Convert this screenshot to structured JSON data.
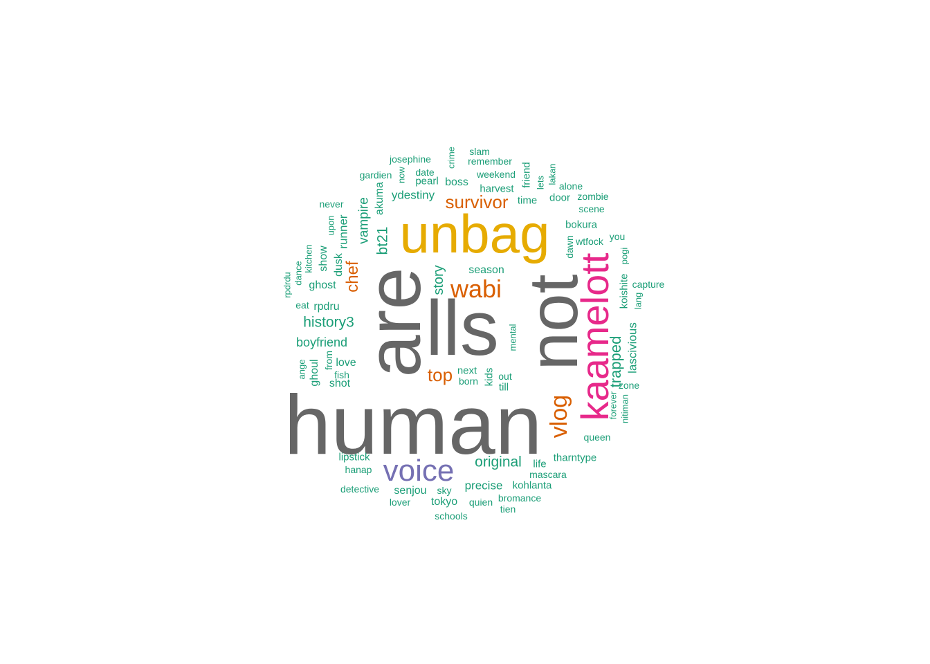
{
  "colors": {
    "gray": "#666666",
    "gold": "#E6AB02",
    "pink": "#E7298A",
    "orange": "#D95F02",
    "purple": "#7570B3",
    "teal": "#1B9E77"
  },
  "words": [
    {
      "text": "human",
      "color": "gray"
    },
    {
      "text": "lls",
      "color": "gray"
    },
    {
      "text": "are",
      "color": "gray"
    },
    {
      "text": "not",
      "color": "gray"
    },
    {
      "text": "unbag",
      "color": "gold"
    },
    {
      "text": "kaamelott",
      "color": "pink"
    },
    {
      "text": "voice",
      "color": "purple"
    },
    {
      "text": "wabi",
      "color": "orange"
    },
    {
      "text": "vlog",
      "color": "orange"
    },
    {
      "text": "survivor",
      "color": "orange"
    },
    {
      "text": "chef",
      "color": "orange"
    },
    {
      "text": "top",
      "color": "orange"
    },
    {
      "text": "trapped",
      "color": "teal"
    },
    {
      "text": "original",
      "color": "teal"
    },
    {
      "text": "history3",
      "color": "teal"
    },
    {
      "text": "story",
      "color": "teal"
    },
    {
      "text": "bt21",
      "color": "teal"
    },
    {
      "text": "vampire",
      "color": "teal"
    },
    {
      "text": "boyfriend",
      "color": "teal"
    },
    {
      "text": "lascivious",
      "color": "teal"
    },
    {
      "text": "akuma",
      "color": "teal"
    },
    {
      "text": "ydestiny",
      "color": "teal"
    },
    {
      "text": "season",
      "color": "teal"
    },
    {
      "text": "precise",
      "color": "teal"
    },
    {
      "text": "runner",
      "color": "teal"
    },
    {
      "text": "koishite",
      "color": "teal"
    },
    {
      "text": "rpdru",
      "color": "teal"
    },
    {
      "text": "ghost",
      "color": "teal"
    },
    {
      "text": "love",
      "color": "teal"
    },
    {
      "text": "senjou",
      "color": "teal"
    },
    {
      "text": "kohlanta",
      "color": "teal"
    },
    {
      "text": "tokyo",
      "color": "teal"
    },
    {
      "text": "life",
      "color": "teal"
    },
    {
      "text": "tharntype",
      "color": "teal"
    },
    {
      "text": "lipstick",
      "color": "teal"
    },
    {
      "text": "boss",
      "color": "teal"
    },
    {
      "text": "pearl",
      "color": "teal"
    },
    {
      "text": "harvest",
      "color": "teal"
    },
    {
      "text": "door",
      "color": "teal"
    },
    {
      "text": "bokura",
      "color": "teal"
    },
    {
      "text": "time",
      "color": "teal"
    },
    {
      "text": "friend",
      "color": "teal"
    },
    {
      "text": "dusk",
      "color": "teal"
    },
    {
      "text": "show",
      "color": "teal"
    },
    {
      "text": "ghoul",
      "color": "teal"
    },
    {
      "text": "shot",
      "color": "teal"
    },
    {
      "text": "kids",
      "color": "teal"
    },
    {
      "text": "next",
      "color": "teal"
    },
    {
      "text": "wtfock",
      "color": "teal"
    },
    {
      "text": "dawn",
      "color": "teal"
    },
    {
      "text": "till",
      "color": "teal"
    },
    {
      "text": "zone",
      "color": "teal"
    },
    {
      "text": "queen",
      "color": "teal"
    },
    {
      "text": "mascara",
      "color": "teal"
    },
    {
      "text": "bromance",
      "color": "teal"
    },
    {
      "text": "hanap",
      "color": "teal"
    },
    {
      "text": "detective",
      "color": "teal"
    },
    {
      "text": "sky",
      "color": "teal"
    },
    {
      "text": "lover",
      "color": "teal"
    },
    {
      "text": "quien",
      "color": "teal"
    },
    {
      "text": "tien",
      "color": "teal"
    },
    {
      "text": "schools",
      "color": "teal"
    },
    {
      "text": "josephine",
      "color": "teal"
    },
    {
      "text": "crime",
      "color": "teal"
    },
    {
      "text": "slam",
      "color": "teal"
    },
    {
      "text": "remember",
      "color": "teal"
    },
    {
      "text": "weekend",
      "color": "teal"
    },
    {
      "text": "gardien",
      "color": "teal"
    },
    {
      "text": "now",
      "color": "teal"
    },
    {
      "text": "date",
      "color": "teal"
    },
    {
      "text": "lets",
      "color": "teal"
    },
    {
      "text": "lakan",
      "color": "teal"
    },
    {
      "text": "alone",
      "color": "teal"
    },
    {
      "text": "zombie",
      "color": "teal"
    },
    {
      "text": "scene",
      "color": "teal"
    },
    {
      "text": "never",
      "color": "teal"
    },
    {
      "text": "upon",
      "color": "teal"
    },
    {
      "text": "kitchen",
      "color": "teal"
    },
    {
      "text": "dance",
      "color": "teal"
    },
    {
      "text": "rpdrdu",
      "color": "teal"
    },
    {
      "text": "eat",
      "color": "teal"
    },
    {
      "text": "you",
      "color": "teal"
    },
    {
      "text": "pogi",
      "color": "teal"
    },
    {
      "text": "capture",
      "color": "teal"
    },
    {
      "text": "lang",
      "color": "teal"
    },
    {
      "text": "mental",
      "color": "teal"
    },
    {
      "text": "out",
      "color": "teal"
    },
    {
      "text": "born",
      "color": "teal"
    },
    {
      "text": "from",
      "color": "teal"
    },
    {
      "text": "fish",
      "color": "teal"
    },
    {
      "text": "ange",
      "color": "teal"
    },
    {
      "text": "forever",
      "color": "teal"
    },
    {
      "text": "nitiman",
      "color": "teal"
    }
  ]
}
